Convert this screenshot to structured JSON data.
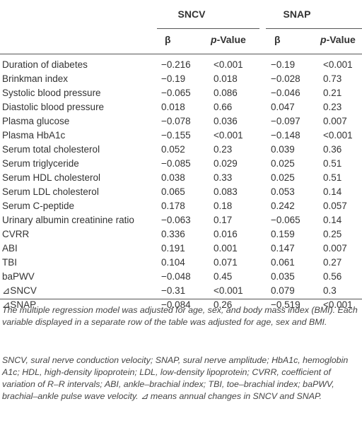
{
  "table": {
    "groups": [
      "SNCV",
      "SNAP"
    ],
    "columns": [
      "β",
      "p-Value",
      "β",
      "p-Value"
    ],
    "rows": [
      [
        "Duration of diabetes",
        "−0.216",
        "<0.001",
        "−0.19",
        "<0.001"
      ],
      [
        "Brinkman index",
        "−0.19",
        "0.018",
        "−0.028",
        "0.73"
      ],
      [
        "Systolic blood pressure",
        "−0.065",
        "0.086",
        "−0.046",
        "0.21"
      ],
      [
        "Diastolic blood pressure",
        "0.018",
        "0.66",
        "0.047",
        "0.23"
      ],
      [
        "Plasma glucose",
        "−0.078",
        "0.036",
        "−0.097",
        "0.007"
      ],
      [
        "Plasma HbA1c",
        "−0.155",
        "<0.001",
        "−0.148",
        "<0.001"
      ],
      [
        "Serum total cholesterol",
        "0.052",
        "0.23",
        "0.039",
        "0.36"
      ],
      [
        "Serum triglyceride",
        "−0.085",
        "0.029",
        "0.025",
        "0.51"
      ],
      [
        "Serum HDL cholesterol",
        "0.038",
        "0.33",
        "0.025",
        "0.51"
      ],
      [
        "Serum LDL cholesterol",
        "0.065",
        "0.083",
        "0.053",
        "0.14"
      ],
      [
        "Serum C-peptide",
        "0.178",
        "0.18",
        "0.242",
        "0.057"
      ],
      [
        "Urinary albumin creatinine ratio",
        "−0.063",
        "0.17",
        "−0.065",
        "0.14"
      ],
      [
        "CVRR",
        "0.336",
        "0.016",
        "0.159",
        "0.25"
      ],
      [
        "ABI",
        "0.191",
        "0.001",
        "0.147",
        "0.007"
      ],
      [
        "TBI",
        "0.104",
        "0.071",
        "0.061",
        "0.27"
      ],
      [
        "baPWV",
        "−0.048",
        "0.45",
        "0.035",
        "0.56"
      ],
      [
        "⊿SNCV",
        "−0.31",
        "<0.001",
        "0.079",
        "0.3"
      ],
      [
        "⊿SNAP",
        "−0.084",
        "0.26",
        "−0.519",
        "<0.001"
      ]
    ]
  },
  "footnotes": [
    "The multiple regression model was adjusted for age, sex, and body mass index (BMI). Each variable displayed in a separate row of the table was adjusted for age, sex and BMI.",
    "SNCV, sural nerve conduction velocity; SNAP, sural nerve amplitude; HbA1c, hemoglobin A1c; HDL, high-density lipoprotein; LDL, low-density lipoprotein; CVRR, coefficient of variation of R–R intervals; ABI, ankle–brachial index; TBI, toe–brachial index; baPWV, brachial–ankle pulse wave velocity. ⊿ means annual changes in SNCV and SNAP."
  ]
}
